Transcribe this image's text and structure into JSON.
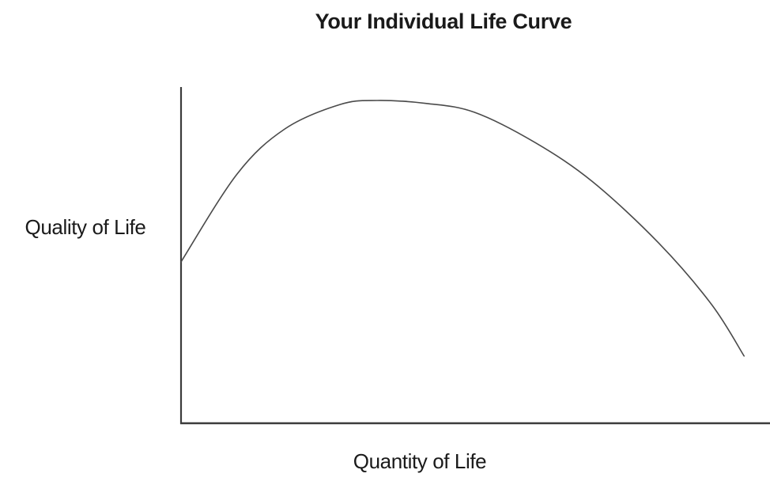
{
  "chart": {
    "title": "Your Individual Life Curve",
    "ylabel": "Quality of Life",
    "xlabel": "Quantity of Life"
  },
  "colors": {
    "background": "#ffffff",
    "axis": "#3c3c3c",
    "curve": "#4a4a4a",
    "text": "#1a1a1a"
  },
  "chart_data": {
    "type": "line",
    "title": "Your Individual Life Curve",
    "xlabel": "Quantity of Life",
    "ylabel": "Quality of Life",
    "x_range": [
      0,
      1
    ],
    "y_range": [
      0,
      1
    ],
    "x_ticks": [],
    "y_ticks": [],
    "grid": false,
    "legend": false,
    "series": [
      {
        "name": "individual-life-curve",
        "color": "#4a4a4a",
        "points": [
          {
            "x": 0.0,
            "y": 0.48
          },
          {
            "x": 0.095,
            "y": 0.741
          },
          {
            "x": 0.176,
            "y": 0.875
          },
          {
            "x": 0.27,
            "y": 0.948
          },
          {
            "x": 0.333,
            "y": 0.96
          },
          {
            "x": 0.417,
            "y": 0.951
          },
          {
            "x": 0.498,
            "y": 0.925
          },
          {
            "x": 0.601,
            "y": 0.835
          },
          {
            "x": 0.699,
            "y": 0.718
          },
          {
            "x": 0.811,
            "y": 0.536
          },
          {
            "x": 0.901,
            "y": 0.353
          },
          {
            "x": 0.956,
            "y": 0.2
          }
        ]
      }
    ]
  }
}
